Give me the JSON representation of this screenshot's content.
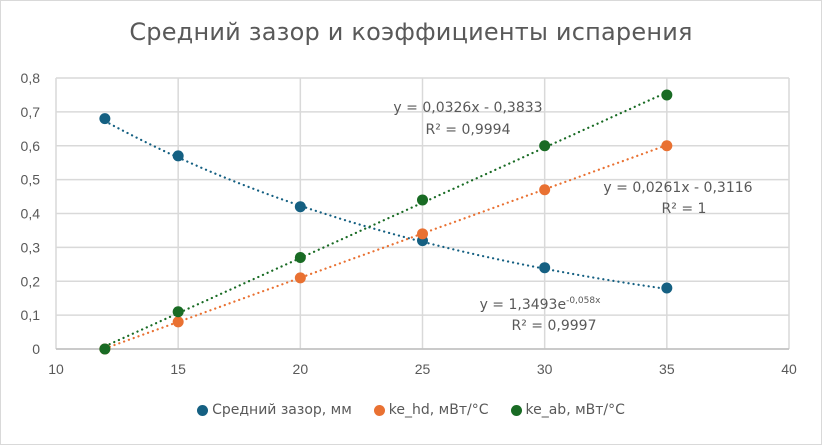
{
  "chart_data": {
    "type": "scatter",
    "title": "Средний зазор и коэффициенты испарения",
    "xlabel": "",
    "ylabel": "",
    "xlim": [
      10,
      40
    ],
    "ylim": [
      0,
      0.8
    ],
    "x_ticks": [
      "10",
      "15",
      "20",
      "25",
      "30",
      "35",
      "40"
    ],
    "y_ticks": [
      "0",
      "0,1",
      "0,2",
      "0,3",
      "0,4",
      "0,5",
      "0,6",
      "0,7",
      "0,8"
    ],
    "grid": true,
    "legend_position": "bottom",
    "x": [
      12,
      15,
      20,
      25,
      30,
      35
    ],
    "series": [
      {
        "name": "Средний зазор, мм",
        "color": "#156082",
        "values": [
          0.68,
          0.57,
          0.42,
          0.32,
          0.24,
          0.18
        ],
        "trendline": {
          "type": "exponential",
          "a": 1.3493,
          "b": -0.058,
          "equation": "y = 1,3493e",
          "exponent": "-0,058x",
          "r2": "R² = 0,9997"
        }
      },
      {
        "name": "ke_hd, мВт/°C",
        "color": "#E97132",
        "values": [
          0.0,
          0.08,
          0.21,
          0.34,
          0.47,
          0.6
        ],
        "trendline": {
          "type": "linear",
          "slope": 0.0261,
          "intercept": -0.3116,
          "equation": "y = 0,0261x - 0,3116",
          "r2": "R² = 1"
        }
      },
      {
        "name": "ke_ab, мВт/°C",
        "color": "#196B24",
        "values": [
          0.0,
          0.11,
          0.27,
          0.44,
          0.6,
          0.75
        ],
        "trendline": {
          "type": "linear",
          "slope": 0.0326,
          "intercept": -0.3833,
          "equation": "y = 0,0326x - 0,3833",
          "r2": "R² = 0,9994"
        }
      }
    ]
  },
  "legend": [
    {
      "label": "Средний зазор, мм",
      "color": "#156082"
    },
    {
      "label": "ke_hd, мВт/°C",
      "color": "#E97132"
    },
    {
      "label": "ke_ab, мВт/°C",
      "color": "#196B24"
    }
  ]
}
